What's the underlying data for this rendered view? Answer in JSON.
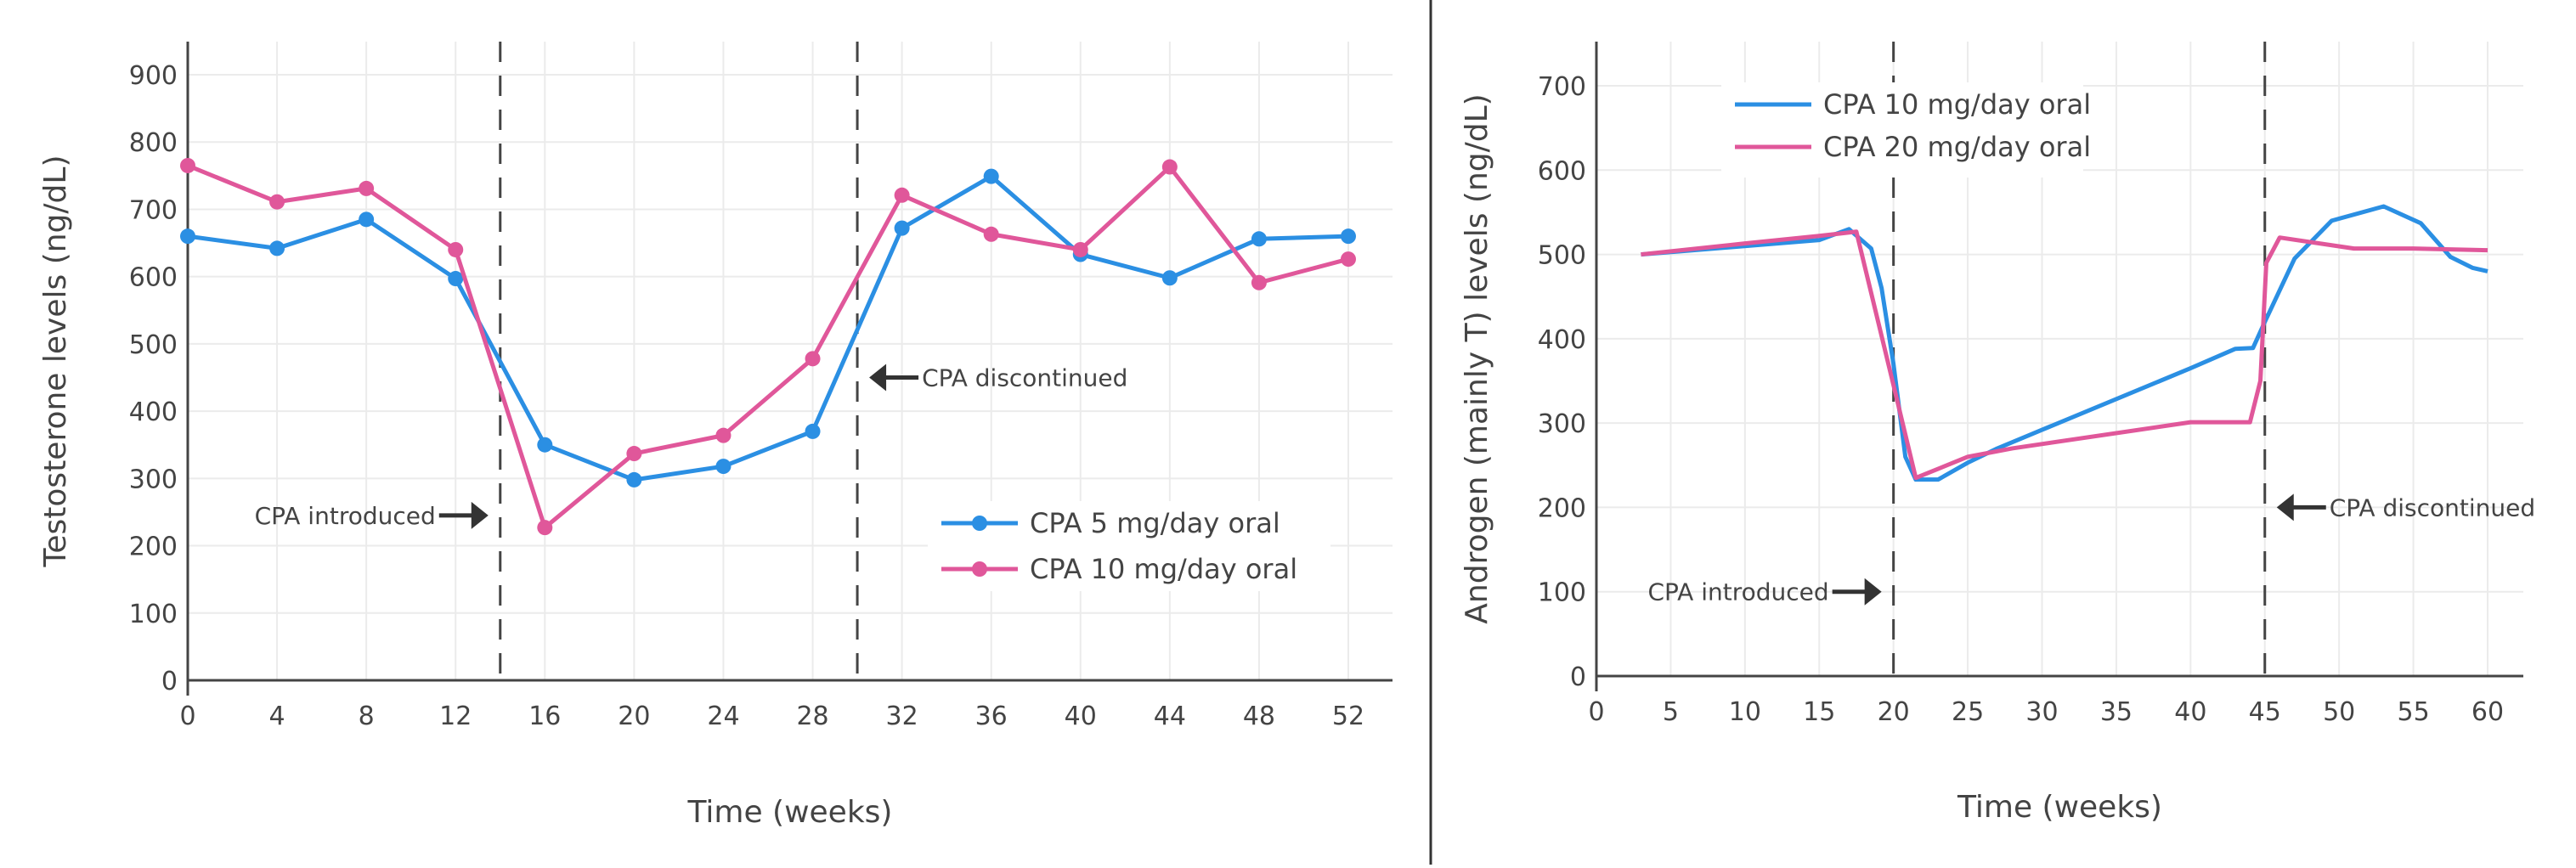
{
  "chart_data": [
    {
      "type": "line",
      "xlabel": "Time (weeks)",
      "ylabel": "Testosterone levels (ng/dL)",
      "xlim": [
        0,
        53.5
      ],
      "ylim": [
        0,
        900
      ],
      "xticks": [
        0,
        4,
        8,
        12,
        16,
        20,
        24,
        28,
        32,
        36,
        40,
        44,
        48,
        52
      ],
      "yticks": [
        0,
        100,
        200,
        300,
        400,
        500,
        600,
        700,
        800,
        900
      ],
      "grid": true,
      "markers": true,
      "legend_position": "bottom-right",
      "x": [
        0,
        4,
        8,
        12,
        16,
        20,
        24,
        28,
        32,
        36,
        40,
        44,
        48,
        52
      ],
      "series": [
        {
          "name": "CPA 5 mg/day oral",
          "color": "#2b8fe3",
          "values": [
            660,
            642,
            685,
            597,
            350,
            298,
            318,
            370,
            672,
            749,
            633,
            598,
            656,
            660
          ]
        },
        {
          "name": "CPA 10 mg/day oral",
          "color": "#e0579a",
          "values": [
            765,
            711,
            731,
            640,
            227,
            337,
            364,
            478,
            721,
            663,
            640,
            763,
            591,
            626
          ]
        }
      ],
      "annotations": [
        {
          "text": "CPA introduced",
          "x": 14,
          "y": 245,
          "arrow": "right"
        },
        {
          "text": "CPA discontinued",
          "x": 30,
          "y": 450,
          "arrow": "left"
        }
      ],
      "vlines": [
        14,
        30
      ]
    },
    {
      "type": "line",
      "xlabel": "Time (weeks)",
      "ylabel": "Androgen (mainly T) levels (ng/dL)",
      "xlim": [
        0,
        62.5
      ],
      "ylim": [
        0,
        750
      ],
      "xticks": [
        0,
        5,
        10,
        15,
        20,
        25,
        30,
        35,
        40,
        45,
        50,
        55,
        60
      ],
      "yticks": [
        0,
        100,
        200,
        300,
        400,
        500,
        600,
        700
      ],
      "grid": true,
      "markers": false,
      "legend_position": "top-left",
      "series": [
        {
          "name": "CPA 10 mg/day oral",
          "color": "#2b8fe3",
          "points": [
            [
              3,
              500
            ],
            [
              15,
              517
            ],
            [
              17,
              530
            ],
            [
              18.5,
              507
            ],
            [
              19.2,
              460
            ],
            [
              20,
              370
            ],
            [
              20.8,
              260
            ],
            [
              21.5,
              233
            ],
            [
              23,
              233
            ],
            [
              25,
              253
            ],
            [
              27,
              270
            ],
            [
              30,
              292
            ],
            [
              40,
              365
            ],
            [
              43,
              388
            ],
            [
              44.2,
              389
            ],
            [
              45,
              420
            ],
            [
              47,
              495
            ],
            [
              49.5,
              540
            ],
            [
              53,
              557
            ],
            [
              55.5,
              537
            ],
            [
              57.5,
              497
            ],
            [
              59,
              484
            ],
            [
              60,
              480
            ]
          ]
        },
        {
          "name": "CPA 20 mg/day oral",
          "color": "#e0579a",
          "points": [
            [
              3,
              500
            ],
            [
              10,
              513
            ],
            [
              15,
              522
            ],
            [
              17.5,
              527
            ],
            [
              20,
              345
            ],
            [
              21.5,
              235
            ],
            [
              25,
              260
            ],
            [
              28,
              270
            ],
            [
              40,
              301
            ],
            [
              44,
              301
            ],
            [
              44.7,
              350
            ],
            [
              45.1,
              490
            ],
            [
              46,
              520
            ],
            [
              51,
              507
            ],
            [
              55,
              507
            ],
            [
              60,
              505
            ]
          ]
        }
      ],
      "annotations": [
        {
          "text": "CPA introduced",
          "x": 20,
          "y": 100,
          "arrow": "right"
        },
        {
          "text": "CPA discontinued",
          "x": 45,
          "y": 200,
          "arrow": "left"
        }
      ],
      "vlines": [
        20,
        45
      ]
    }
  ]
}
